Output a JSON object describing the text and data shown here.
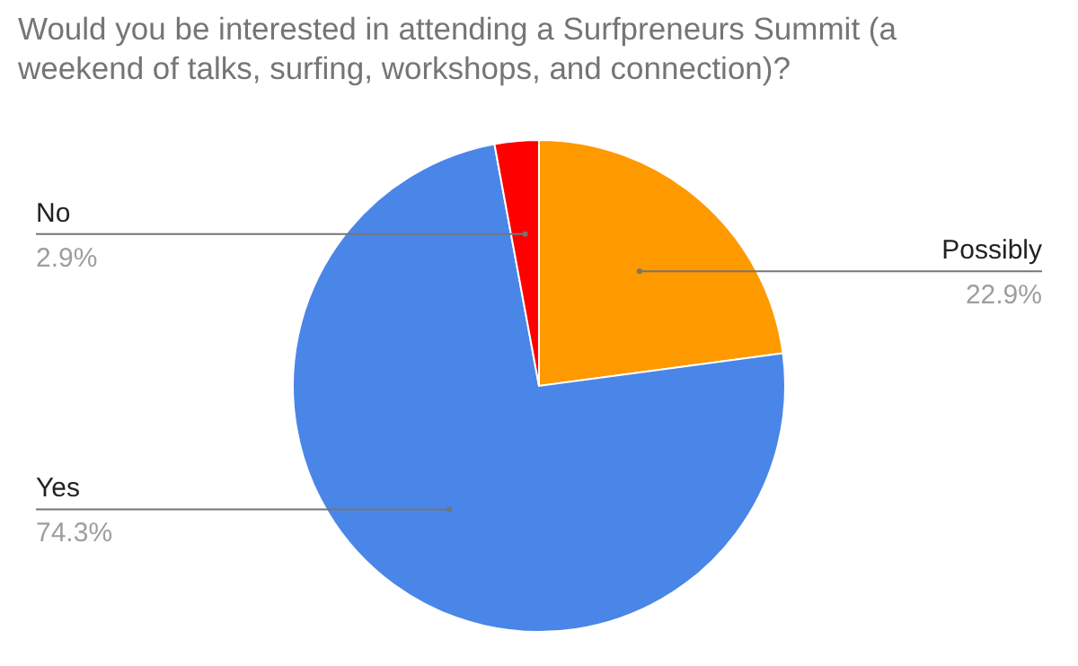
{
  "chart_data": {
    "type": "pie",
    "title": "Would you be interested in attending a Surfpreneurs Summit (a weekend of talks, surfing, workshops, and connection)?",
    "categories": [
      "Possibly",
      "Yes",
      "No"
    ],
    "values": [
      22.9,
      74.3,
      2.9
    ],
    "colors": [
      "#ff9900",
      "#4a86e8",
      "#ff0000"
    ],
    "value_labels": [
      "22.9%",
      "74.3%",
      "2.9%"
    ]
  }
}
